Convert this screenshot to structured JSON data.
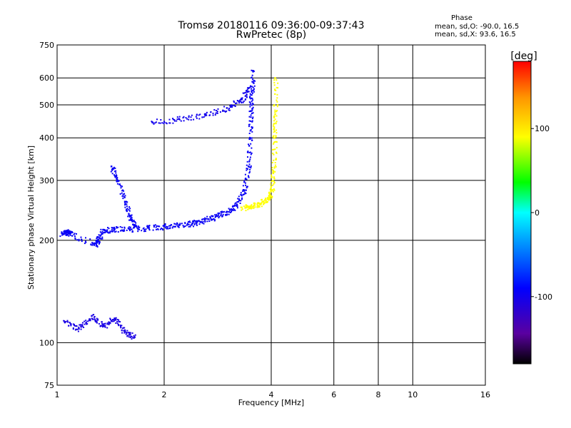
{
  "header": {
    "title_line1": "Tromsø 20180116 09:36:00-09:37:43",
    "title_line2": "RwPretec (8p)"
  },
  "phase_box": {
    "heading": "Phase",
    "o_line": "mean, sd,O: -90.0, 16.5",
    "x_line": "mean, sd,X:  93.6, 16.5"
  },
  "chart_data": {
    "type": "scatter",
    "xlabel": "Frequency [MHz]",
    "ylabel": "Stationary phase Virtual Height [km]",
    "xscale": "log",
    "yscale": "log",
    "xlim": [
      1,
      16
    ],
    "ylim": [
      75,
      750
    ],
    "xticks": [
      1,
      2,
      4,
      6,
      8,
      10,
      16
    ],
    "yticks": [
      75,
      100,
      200,
      300,
      400,
      500,
      600,
      750
    ],
    "grid": true,
    "colorbar": {
      "label": "[deg]",
      "range": [
        -180,
        180
      ],
      "ticks": [
        100,
        0,
        -100
      ],
      "colors": [
        "#000000",
        "#5a00a0",
        "#0000ff",
        "#0096ff",
        "#00ffff",
        "#00ff00",
        "#ffff00",
        "#ff9600",
        "#ff0000"
      ]
    },
    "traces": [
      {
        "name": "",
        "phase": -95,
        "points": [
          [
            1.03,
            210
          ],
          [
            1.06,
            212
          ],
          [
            1.09,
            210
          ],
          [
            1.27,
            195
          ],
          [
            1.3,
            200
          ],
          [
            1.35,
            215
          ],
          [
            1.45,
            216
          ],
          [
            1.6,
            216
          ],
          [
            1.8,
            218
          ],
          [
            2.0,
            220
          ],
          [
            2.2,
            222
          ],
          [
            2.4,
            225
          ],
          [
            2.6,
            230
          ],
          [
            2.8,
            236
          ],
          [
            3.0,
            243
          ],
          [
            3.2,
            255
          ],
          [
            3.35,
            280
          ],
          [
            3.45,
            330
          ],
          [
            3.48,
            400
          ],
          [
            3.5,
            480
          ],
          [
            3.52,
            550
          ],
          [
            3.55,
            630
          ]
        ]
      },
      {
        "name": "",
        "phase": 90,
        "points": [
          [
            3.3,
            250
          ],
          [
            3.5,
            252
          ],
          [
            3.7,
            257
          ],
          [
            3.9,
            265
          ],
          [
            4.0,
            280
          ],
          [
            4.05,
            320
          ],
          [
            4.08,
            400
          ],
          [
            4.1,
            470
          ],
          [
            4.1,
            600
          ]
        ]
      },
      {
        "name": "",
        "phase": -100,
        "points": [
          [
            1.85,
            445
          ],
          [
            2.2,
            455
          ],
          [
            2.6,
            470
          ],
          [
            3.0,
            490
          ],
          [
            3.3,
            520
          ],
          [
            3.45,
            560
          ]
        ]
      },
      {
        "name": "",
        "phase": -95,
        "points": [
          [
            1.42,
            330
          ],
          [
            1.48,
            300
          ],
          [
            1.55,
            260
          ],
          [
            1.6,
            235
          ],
          [
            1.65,
            220
          ]
        ]
      },
      {
        "name": "",
        "phase": -105,
        "points": [
          [
            1.05,
            115
          ],
          [
            1.15,
            110
          ],
          [
            1.25,
            120
          ],
          [
            1.35,
            112
          ],
          [
            1.45,
            118
          ],
          [
            1.55,
            108
          ],
          [
            1.65,
            104
          ]
        ]
      }
    ]
  }
}
